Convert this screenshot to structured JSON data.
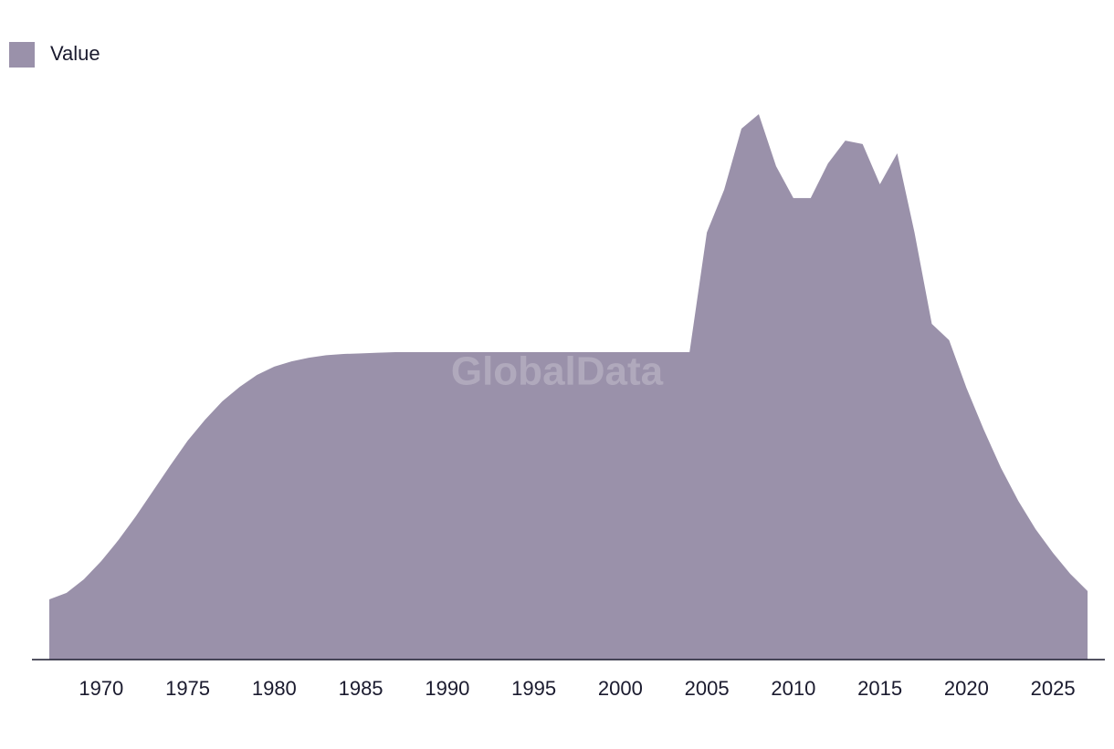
{
  "chart_data": {
    "type": "area",
    "watermark": "GlobalData",
    "x": [
      1967,
      1968,
      1969,
      1970,
      1971,
      1972,
      1973,
      1974,
      1975,
      1976,
      1977,
      1978,
      1979,
      1980,
      1981,
      1982,
      1983,
      1984,
      1985,
      1986,
      1987,
      1988,
      1989,
      1990,
      1991,
      1992,
      1993,
      1994,
      1995,
      1996,
      1997,
      1998,
      1999,
      2000,
      2001,
      2002,
      2003,
      2004,
      2005,
      2006,
      2007,
      2008,
      2009,
      2010,
      2011,
      2012,
      2013,
      2014,
      2015,
      2016,
      2017,
      2018,
      2019,
      2020,
      2021,
      2022,
      2023,
      2024,
      2025,
      2026,
      2027
    ],
    "series": [
      {
        "name": "Value",
        "color": "#9a91aa",
        "values": [
          19.6,
          21.7,
          26.1,
          32,
          38.9,
          46.6,
          54.9,
          63.2,
          71.2,
          78,
          84,
          88.7,
          92.6,
          95.3,
          97,
          98.2,
          99,
          99.4,
          99.6,
          99.8,
          100,
          100,
          100,
          100,
          100,
          100,
          100,
          100,
          100,
          100,
          100,
          100,
          100,
          100,
          100,
          100,
          100,
          100,
          138.9,
          152.8,
          172.7,
          177.4,
          160.5,
          150.1,
          150.1,
          161.4,
          168.8,
          167.7,
          154.6,
          164.7,
          138.9,
          109.2,
          103.9,
          88.4,
          74.8,
          62.3,
          51.6,
          42.4,
          34.7,
          27.9,
          22.3
        ]
      }
    ],
    "xlim": [
      1966,
      2028
    ],
    "xticks": [
      1970,
      1975,
      1980,
      1985,
      1990,
      1995,
      2000,
      2005,
      2010,
      2015,
      2020,
      2025
    ],
    "ylim": [
      0,
      200
    ],
    "legend": "top-left"
  }
}
